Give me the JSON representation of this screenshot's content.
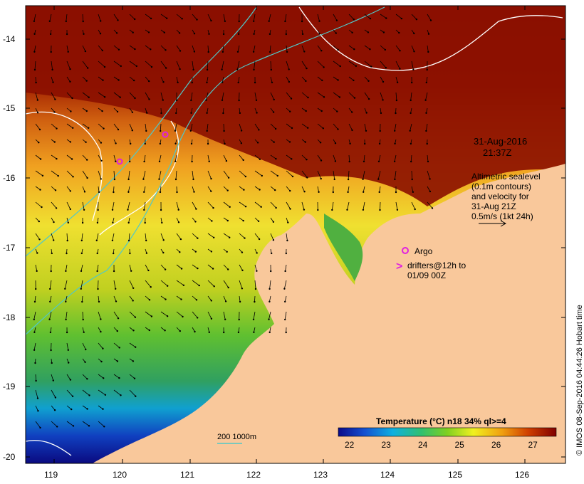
{
  "date_label": "31-Aug-2016",
  "time_label": "21:37Z",
  "legend_block": {
    "line1": "Altimetric sealevel",
    "line2": "(0.1m contours)",
    "line3": "and velocity for",
    "line4": "31-Aug 21Z",
    "line5": "0.5m/s (1kt 24h)"
  },
  "argo_label": "Argo",
  "drifter_label1": "drifters@12h to",
  "drifter_label2": "01/09 00Z",
  "drifter_marker": ">",
  "depth_label": "200 1000m",
  "colorbar": {
    "title": "Temperature (°C) n18 34% ql>=4",
    "ticks": [
      "22",
      "23",
      "24",
      "25",
      "26",
      "27"
    ]
  },
  "credit": "© IMOS 08-Sep-2016 04:44:26 Hobart time",
  "lon_ticks": [
    "119",
    "120",
    "121",
    "122",
    "123",
    "124",
    "125",
    "126"
  ],
  "lat_ticks": [
    "-14",
    "-15",
    "-16",
    "-17",
    "-18",
    "-19",
    "-20"
  ],
  "colors": {
    "land": "#f9c89b",
    "warm": "#8b0d00",
    "cool": "#0a1a9a",
    "argo": "#e020e0",
    "contour": "#50c8c8"
  }
}
